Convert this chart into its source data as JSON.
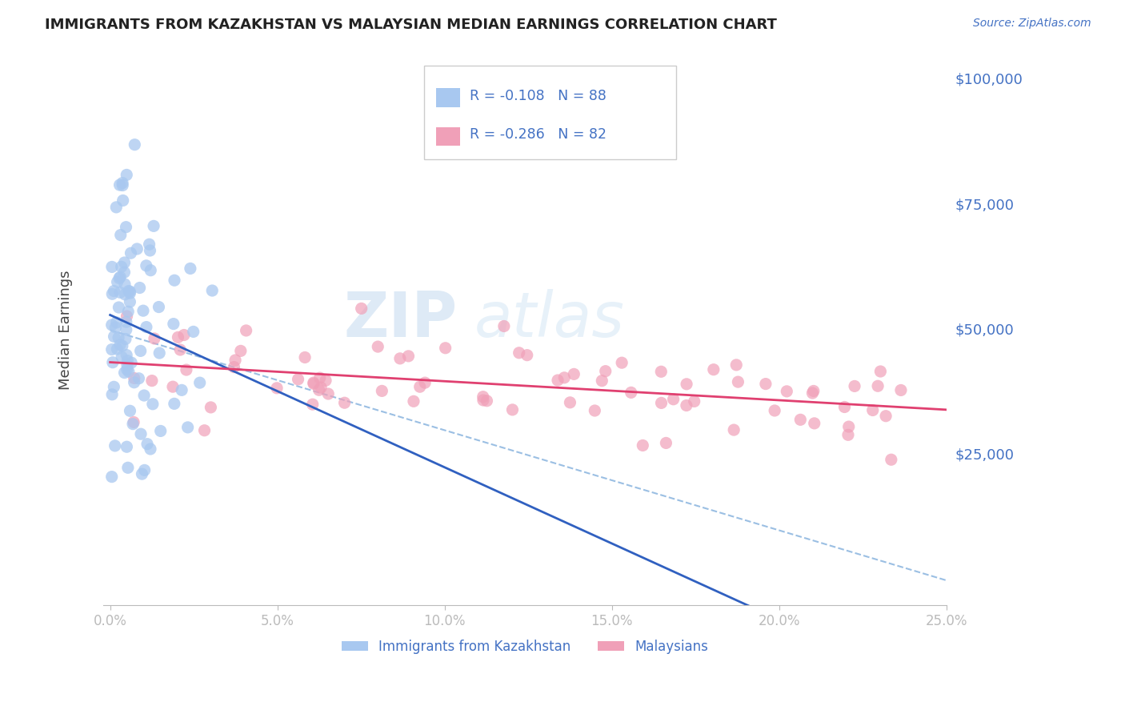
{
  "title": "IMMIGRANTS FROM KAZAKHSTAN VS MALAYSIAN MEDIAN EARNINGS CORRELATION CHART",
  "source": "Source: ZipAtlas.com",
  "ylabel": "Median Earnings",
  "legend_label1": "Immigrants from Kazakhstan",
  "legend_label2": "Malaysians",
  "r1": -0.108,
  "n1": 88,
  "r2": -0.286,
  "n2": 82,
  "color1": "#A8C8F0",
  "color2": "#F0A0B8",
  "trend_color1": "#3060C0",
  "trend_color2": "#E04070",
  "trend_color_dash": "#90B8E0",
  "title_color": "#222222",
  "axis_label_color": "#4472C4",
  "ytick_labels": [
    "$25,000",
    "$50,000",
    "$75,000",
    "$100,000"
  ],
  "ytick_values": [
    25000,
    50000,
    75000,
    100000
  ],
  "xtick_labels": [
    "0.0%",
    "5.0%",
    "10.0%",
    "15.0%",
    "20.0%",
    "25.0%"
  ],
  "xtick_values": [
    0.0,
    0.05,
    0.1,
    0.15,
    0.2,
    0.25
  ],
  "xlim": [
    0.0,
    0.25
  ],
  "ylim": [
    0,
    100000
  ],
  "background_color": "#FFFFFF",
  "watermark_zip": "ZIP",
  "watermark_atlas": "atlas",
  "grid_color": "#CCCCCC"
}
